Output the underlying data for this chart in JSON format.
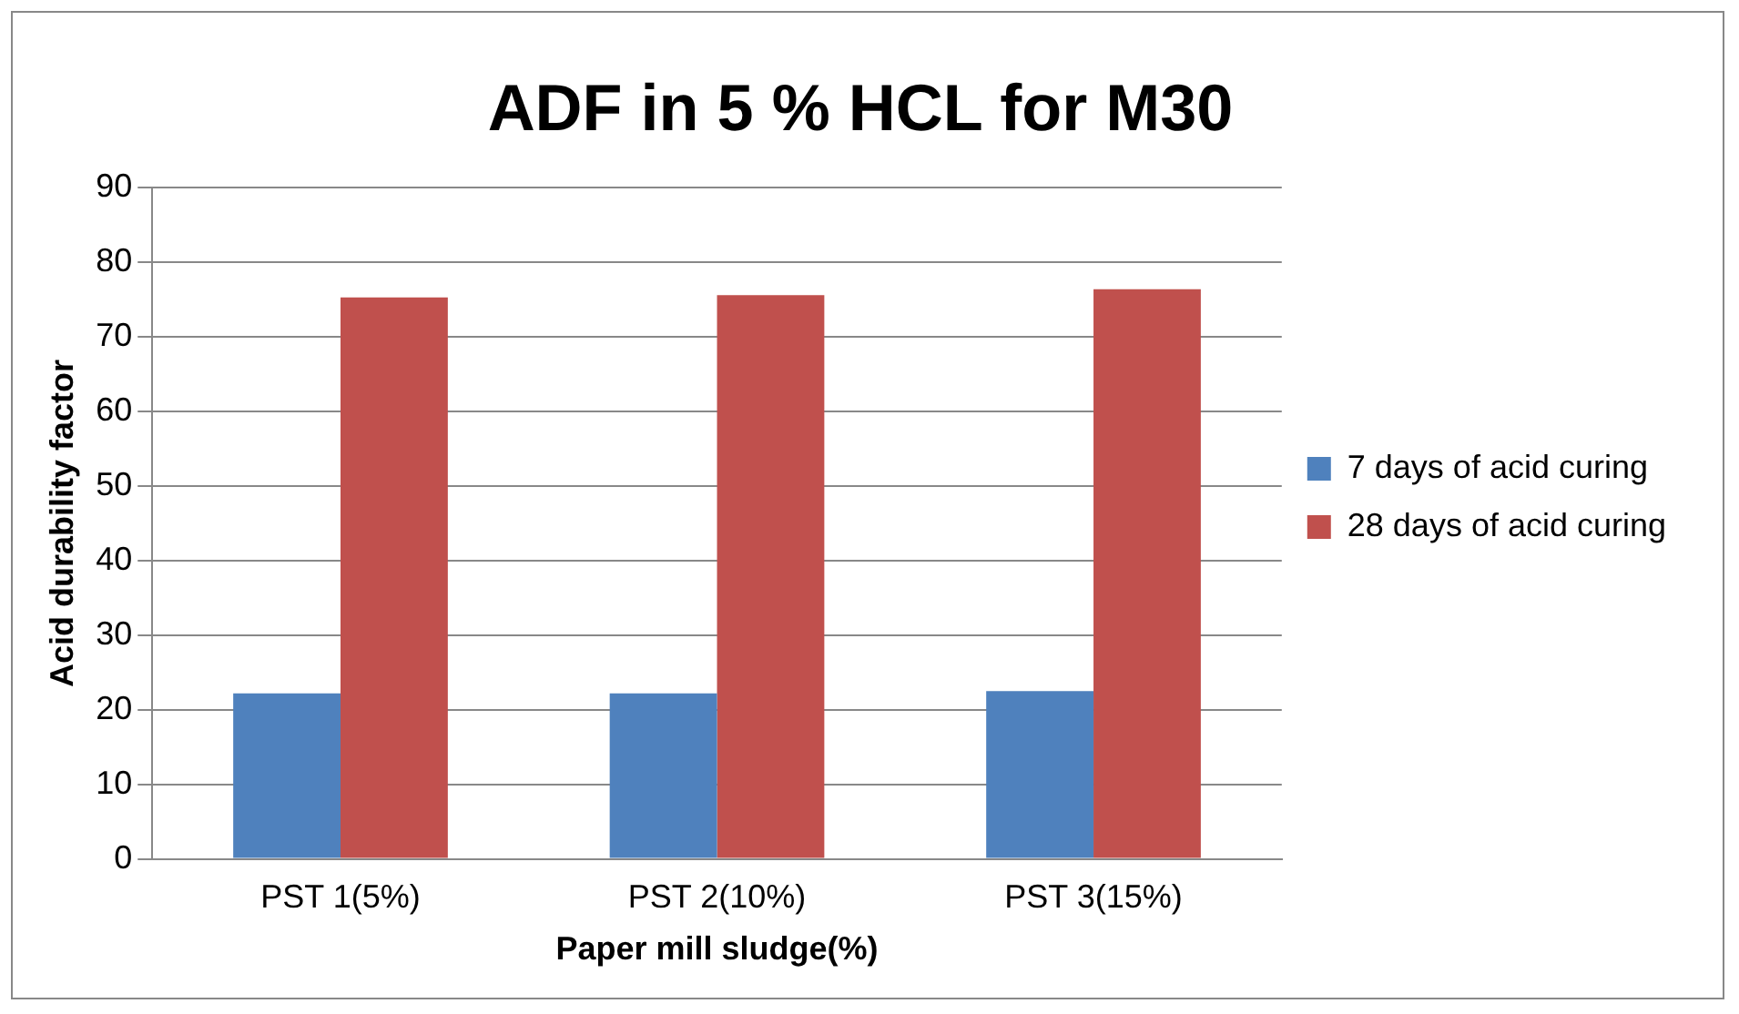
{
  "chart_data": {
    "type": "bar",
    "title": "ADF in 5 % HCL for M30",
    "xlabel": "Paper mill sludge(%)",
    "ylabel": "Acid durability factor",
    "categories": [
      "PST 1(5%)",
      "PST 2(10%)",
      "PST 3(15%)"
    ],
    "series": [
      {
        "name": "7 days of acid curing",
        "color": "#4f81bd",
        "values": [
          22.2,
          22.2,
          22.5
        ]
      },
      {
        "name": "28 days of acid curing",
        "color": "#c0504d",
        "values": [
          75.3,
          75.6,
          76.4
        ]
      }
    ],
    "ylim": [
      0,
      90
    ],
    "yticks": [
      0,
      10,
      20,
      30,
      40,
      50,
      60,
      70,
      80,
      90
    ],
    "grid": "y",
    "legend": "right"
  }
}
